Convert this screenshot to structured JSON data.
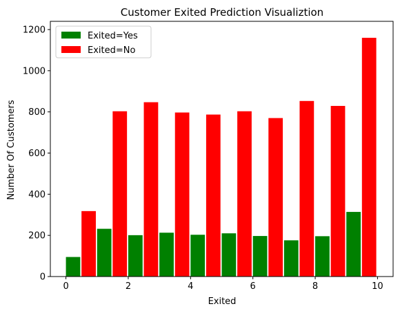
{
  "chart_data": {
    "type": "bar",
    "title": "Customer Exited Prediction Visualiztion",
    "xlabel": "Exited",
    "ylabel": "Number Of Customers",
    "xlim": [
      -0.5,
      10.5
    ],
    "ylim": [
      0,
      1240
    ],
    "x_ticks": [
      0,
      2,
      4,
      6,
      8,
      10
    ],
    "y_ticks": [
      0,
      200,
      400,
      600,
      800,
      1000,
      1200
    ],
    "bin_edges": [
      0,
      1,
      2,
      3,
      4,
      5,
      6,
      7,
      8,
      9,
      10
    ],
    "grid": false,
    "legend_position": "top-left",
    "series": [
      {
        "name": "Exited=Yes",
        "color": "#008000",
        "values": [
          95,
          232,
          201,
          213,
          203,
          210,
          197,
          176,
          196,
          314
        ]
      },
      {
        "name": "Exited=No",
        "color": "#ff0000",
        "values": [
          318,
          803,
          847,
          797,
          787,
          803,
          770,
          853,
          829,
          1160
        ]
      }
    ]
  }
}
